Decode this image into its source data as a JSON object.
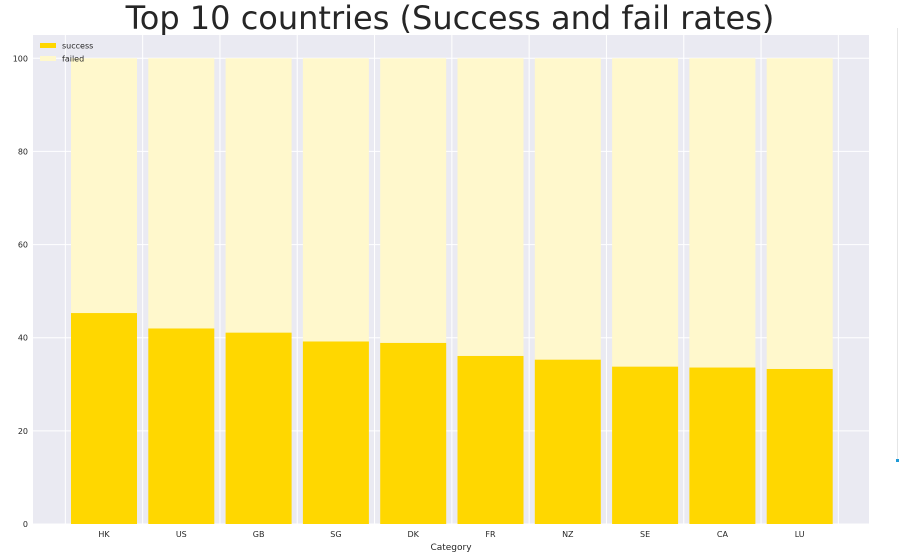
{
  "chart_data": {
    "type": "bar",
    "stacked": true,
    "title": "Top 10 countries (Success and fail rates)",
    "xlabel": "Category",
    "ylabel": "",
    "categories": [
      "HK",
      "US",
      "GB",
      "SG",
      "DK",
      "FR",
      "NZ",
      "SE",
      "CA",
      "LU"
    ],
    "series": [
      {
        "name": "success",
        "color": "#ffd700",
        "values": [
          45.3,
          42.0,
          41.1,
          39.2,
          38.9,
          36.1,
          35.3,
          33.8,
          33.6,
          33.3
        ]
      },
      {
        "name": "failed",
        "color": "#fff8cc",
        "values": [
          54.7,
          58.0,
          58.9,
          60.8,
          61.1,
          63.9,
          64.7,
          66.2,
          66.4,
          66.7
        ]
      }
    ],
    "ylim": [
      0,
      105
    ],
    "yticks": [
      0,
      20,
      40,
      60,
      80,
      100
    ],
    "grid": true,
    "legend_position": "top-left",
    "background": "#eaeaf2"
  }
}
